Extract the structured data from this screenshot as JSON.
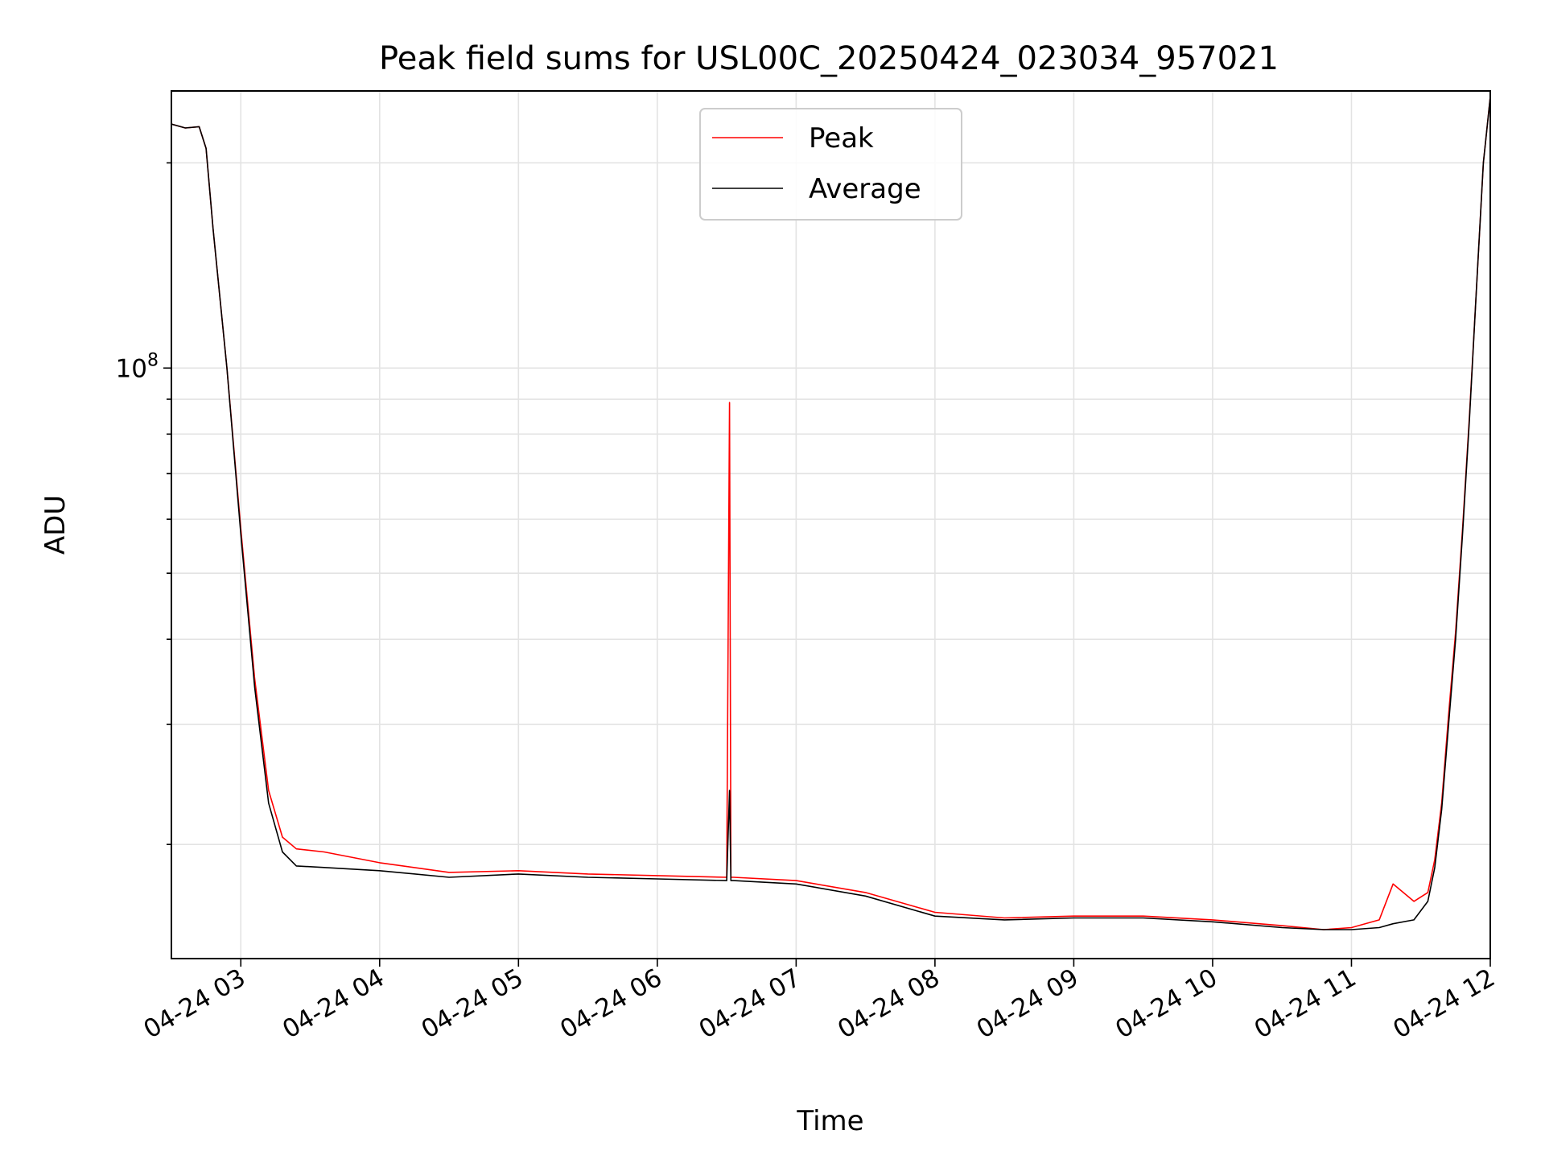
{
  "chart_data": {
    "type": "line",
    "title": "Peak field sums for USL00C_20250424_023034_957021",
    "xlabel": "Time",
    "ylabel": "ADU",
    "yscale": "log",
    "xlim": [
      2.5,
      12.0
    ],
    "ylim": [
      13600000,
      255000000
    ],
    "grid": true,
    "legend_position": "upper-center",
    "x_ticks": [
      {
        "value": 3,
        "label": "04-24 03"
      },
      {
        "value": 4,
        "label": "04-24 04"
      },
      {
        "value": 5,
        "label": "04-24 05"
      },
      {
        "value": 6,
        "label": "04-24 06"
      },
      {
        "value": 7,
        "label": "04-24 07"
      },
      {
        "value": 8,
        "label": "04-24 08"
      },
      {
        "value": 9,
        "label": "04-24 09"
      },
      {
        "value": 10,
        "label": "04-24 10"
      },
      {
        "value": 11,
        "label": "04-24 11"
      },
      {
        "value": 12,
        "label": "04-24 12"
      }
    ],
    "y_major_ticks": [
      {
        "value": 100000000,
        "base": "10",
        "exponent": "8"
      }
    ],
    "y_minor_ticks": [
      20000000,
      30000000,
      40000000,
      50000000,
      60000000,
      70000000,
      80000000,
      90000000,
      200000000
    ],
    "series": [
      {
        "name": "Peak",
        "color": "#ff0000",
        "x": [
          2.5,
          2.6,
          2.7,
          2.75,
          2.8,
          2.9,
          3.0,
          3.1,
          3.2,
          3.3,
          3.4,
          3.6,
          4.0,
          4.5,
          5.0,
          5.5,
          6.0,
          6.5,
          6.52,
          6.53,
          6.55,
          7.0,
          7.5,
          8.0,
          8.5,
          9.0,
          9.5,
          10.0,
          10.5,
          10.8,
          11.0,
          11.2,
          11.3,
          11.45,
          11.55,
          11.6,
          11.65,
          11.7,
          11.75,
          11.8,
          11.85,
          11.9,
          11.95,
          12.0
        ],
        "y": [
          228000000,
          225000000,
          226000000,
          210000000,
          160000000,
          100000000,
          58000000,
          35000000,
          24000000,
          20500000,
          19700000,
          19500000,
          18800000,
          18200000,
          18300000,
          18100000,
          18000000,
          17900000,
          89000000,
          17900000,
          17900000,
          17700000,
          17000000,
          15900000,
          15600000,
          15700000,
          15700000,
          15500000,
          15200000,
          15000000,
          15100000,
          15500000,
          17500000,
          16500000,
          17000000,
          19000000,
          23000000,
          31000000,
          41000000,
          58000000,
          85000000,
          130000000,
          200000000,
          250000000
        ]
      },
      {
        "name": "Average",
        "color": "#000000",
        "x": [
          2.5,
          2.6,
          2.7,
          2.75,
          2.8,
          2.9,
          3.0,
          3.1,
          3.2,
          3.3,
          3.4,
          3.6,
          4.0,
          4.5,
          5.0,
          5.5,
          6.0,
          6.5,
          6.52,
          6.53,
          6.55,
          7.0,
          7.5,
          8.0,
          8.5,
          9.0,
          9.5,
          10.0,
          10.5,
          10.8,
          11.0,
          11.2,
          11.3,
          11.45,
          11.55,
          11.6,
          11.65,
          11.7,
          11.75,
          11.8,
          11.85,
          11.9,
          11.95,
          12.0
        ],
        "y": [
          228000000,
          225000000,
          226000000,
          210000000,
          160000000,
          100000000,
          57000000,
          34000000,
          23000000,
          19500000,
          18600000,
          18500000,
          18300000,
          17900000,
          18100000,
          17900000,
          17800000,
          17700000,
          24000000,
          17700000,
          17700000,
          17500000,
          16800000,
          15700000,
          15500000,
          15600000,
          15600000,
          15400000,
          15100000,
          15000000,
          15000000,
          15100000,
          15300000,
          15500000,
          16500000,
          18500000,
          22500000,
          30000000,
          40000000,
          57000000,
          84000000,
          130000000,
          200000000,
          250000000
        ]
      }
    ]
  }
}
